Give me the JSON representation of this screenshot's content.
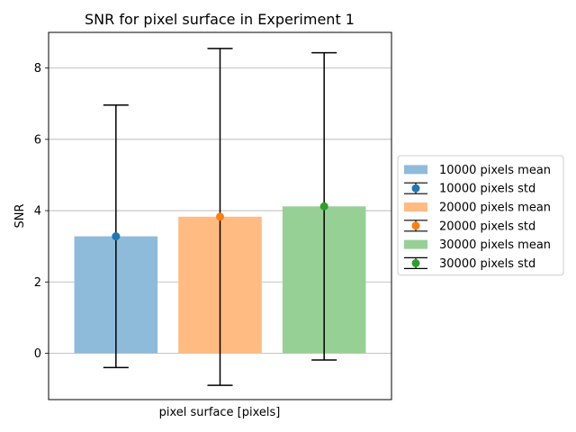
{
  "chart_data": {
    "type": "bar",
    "title": "SNR for pixel surface in Experiment 1",
    "xlabel": "pixel surface [pixels]",
    "ylabel": "SNR",
    "ylim": [
      -1.3,
      9.0
    ],
    "yticks": [
      0,
      2,
      4,
      6,
      8
    ],
    "grid": "horizontal",
    "legend_placement": "outside-right",
    "series": [
      {
        "label": "10000",
        "mean": 3.28,
        "error_low": -0.4,
        "error_high": 6.96,
        "bar_color": "#8fbbda",
        "point_color": "#1f77b4"
      },
      {
        "label": "20000",
        "mean": 3.83,
        "error_low": -0.9,
        "error_high": 8.55,
        "bar_color": "#ffbb82",
        "point_color": "#ff7f0e"
      },
      {
        "label": "30000",
        "mean": 4.12,
        "error_low": -0.19,
        "error_high": 8.43,
        "bar_color": "#97d095",
        "point_color": "#2ca02c"
      }
    ],
    "legend": [
      {
        "text": "10000 pixels mean",
        "kind": "patch",
        "color": "#8fbbda"
      },
      {
        "text": "10000 pixels std",
        "kind": "errorbar",
        "color": "#1f77b4"
      },
      {
        "text": "20000 pixels mean",
        "kind": "patch",
        "color": "#ffbb82"
      },
      {
        "text": "20000 pixels std",
        "kind": "errorbar",
        "color": "#ff7f0e"
      },
      {
        "text": "30000 pixels mean",
        "kind": "patch",
        "color": "#97d095"
      },
      {
        "text": "30000 pixels std",
        "kind": "errorbar",
        "color": "#2ca02c"
      }
    ]
  }
}
